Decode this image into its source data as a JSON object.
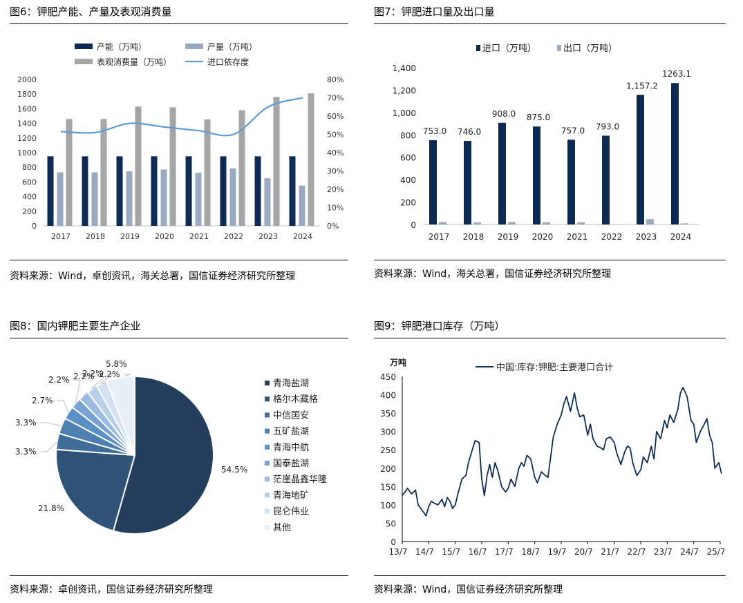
{
  "panels": {
    "p6": {
      "title": "图6：钾肥产能、产量及表观消费量",
      "source": "资料来源：Wind，卓创资讯，海关总署，国信证券经济研究所整理"
    },
    "p7": {
      "title": "图7：钾肥进口量及出口量",
      "source": "资料来源：Wind，海关总署，国信证券经济研究所整理"
    },
    "p8": {
      "title": "图8：国内钾肥主要生产企业",
      "source": "资料来源：卓创资讯，国信证券经济研究所整理"
    },
    "p9": {
      "title": "图9：钾肥港口库存（万吨）",
      "source": "资料来源：Wind，国信证券经济研究所整理"
    }
  },
  "colors": {
    "navy": "#0d2a54",
    "steel": "#9aabbf",
    "gray": "#a6a6a6",
    "line": "#5b9bd5"
  },
  "chart_data": [
    {
      "type": "bar",
      "categories": [
        "2017",
        "2018",
        "2019",
        "2020",
        "2021",
        "2022",
        "2023",
        "2024"
      ],
      "series": [
        {
          "name": "产能（万吨）",
          "values": [
            950,
            950,
            950,
            950,
            950,
            950,
            950,
            950
          ]
        },
        {
          "name": "产量（万吨）",
          "values": [
            730,
            730,
            745,
            770,
            725,
            785,
            650,
            550
          ]
        },
        {
          "name": "表观消费量（万吨）",
          "values": [
            1460,
            1460,
            1630,
            1620,
            1455,
            1580,
            1760,
            1810
          ]
        },
        {
          "name": "进口依存度",
          "axis": "right",
          "values": [
            51.5,
            51,
            56,
            54,
            52,
            50,
            65,
            70
          ]
        }
      ],
      "ylim": [
        0,
        2000
      ],
      "yticks": [
        "0",
        "200",
        "400",
        "600",
        "800",
        "1000",
        "1200",
        "1400",
        "1600",
        "1800",
        "2000"
      ],
      "y2lim": [
        0,
        80
      ],
      "y2ticks": [
        "0%",
        "10%",
        "20%",
        "30%",
        "40%",
        "50%",
        "60%",
        "70%",
        "80%"
      ]
    },
    {
      "type": "bar",
      "categories": [
        "2017",
        "2018",
        "2019",
        "2020",
        "2021",
        "2022",
        "2023",
        "2024"
      ],
      "series": [
        {
          "name": "进口（万吨）",
          "values": [
            753.0,
            746.0,
            908.0,
            875.0,
            757.0,
            793.0,
            1157.2,
            1263.1
          ],
          "labels": [
            "753.0",
            "746.0",
            "908.0",
            "875.0",
            "757.0",
            "793.0",
            "1,157.2",
            "1263.1"
          ]
        },
        {
          "name": "出口（万吨）",
          "values": [
            22,
            18,
            22,
            20,
            20,
            2,
            48,
            10
          ]
        }
      ],
      "ylim": [
        0,
        1400
      ],
      "yticks": [
        "0",
        "200",
        "400",
        "600",
        "800",
        "1,000",
        "1,200",
        "1,400"
      ]
    },
    {
      "type": "pie",
      "categories": [
        "青海盐湖",
        "格尔木藏格",
        "中信国安",
        "五矿盐湖",
        "青海中航",
        "国泰盐湖",
        "茫崖晶鑫华隆",
        "青海地矿",
        "昆仑伟业",
        "其他"
      ],
      "values": [
        54.5,
        21.8,
        3.3,
        3.3,
        2.7,
        2.2,
        2.2,
        2.2,
        2.2,
        5.8
      ],
      "labels": [
        "54.5%",
        "21.8%",
        "3.3%",
        "3.3%",
        "2.7%",
        "2.2%",
        "2.2%",
        "2.2%",
        "2.2%",
        "5.8%"
      ],
      "colors": [
        "#243f5e",
        "#2f5478",
        "#3f6d99",
        "#4d7fb0",
        "#5b8fc5",
        "#7aa3d3",
        "#9cbbe2",
        "#b9cfe9",
        "#d3e1f2",
        "#e8eff8"
      ]
    },
    {
      "type": "line",
      "ylabel": "万吨",
      "series": [
        {
          "name": "中国:库存:钾肥:主要港口合计"
        }
      ],
      "ylim": [
        0,
        450
      ],
      "yticks": [
        "0",
        "50",
        "100",
        "150",
        "200",
        "250",
        "300",
        "350",
        "400",
        "450"
      ],
      "xticks": [
        "13/7",
        "14/7",
        "15/7",
        "16/7",
        "17/7",
        "18/7",
        "19/7",
        "20/7",
        "21/7",
        "22/7",
        "23/7",
        "24/7",
        "25/7"
      ],
      "x": [
        13.5,
        13.7,
        13.85,
        14.0,
        14.1,
        14.25,
        14.4,
        14.5,
        14.6,
        14.7,
        14.85,
        15.0,
        15.1,
        15.2,
        15.3,
        15.4,
        15.5,
        15.6,
        15.75,
        15.9,
        16.0,
        16.1,
        16.25,
        16.4,
        16.5,
        16.6,
        16.7,
        16.8,
        16.9,
        17.0,
        17.1,
        17.25,
        17.4,
        17.5,
        17.6,
        17.75,
        17.9,
        18.0,
        18.1,
        18.2,
        18.35,
        18.5,
        18.6,
        18.75,
        18.9,
        19.0,
        19.1,
        19.2,
        19.35,
        19.5,
        19.6,
        19.7,
        19.85,
        20.0,
        20.1,
        20.2,
        20.35,
        20.5,
        20.6,
        20.7,
        20.85,
        21.0,
        21.1,
        21.2,
        21.35,
        21.5,
        21.6,
        21.75,
        21.9,
        22.0,
        22.1,
        22.2,
        22.35,
        22.5,
        22.6,
        22.75,
        22.9,
        23.0,
        23.1,
        23.25,
        23.4,
        23.5,
        23.6,
        23.75,
        23.9,
        24.0,
        24.1,
        24.25,
        24.4,
        24.5,
        24.6,
        24.75,
        24.9,
        25.0,
        25.1,
        25.2,
        25.3,
        25.45,
        25.55
      ],
      "y": [
        125,
        145,
        130,
        140,
        100,
        85,
        70,
        95,
        110,
        105,
        100,
        115,
        95,
        120,
        110,
        90,
        100,
        130,
        170,
        180,
        215,
        240,
        275,
        270,
        170,
        125,
        180,
        210,
        175,
        215,
        195,
        150,
        135,
        145,
        170,
        150,
        200,
        215,
        205,
        235,
        225,
        175,
        160,
        190,
        180,
        175,
        230,
        285,
        320,
        345,
        375,
        395,
        355,
        405,
        365,
        340,
        345,
        290,
        320,
        280,
        260,
        255,
        250,
        280,
        285,
        270,
        240,
        210,
        245,
        260,
        255,
        215,
        180,
        195,
        230,
        215,
        260,
        225,
        300,
        280,
        330,
        310,
        345,
        325,
        360,
        405,
        420,
        395,
        330,
        320,
        270,
        300,
        320,
        335,
        290,
        270,
        200,
        215,
        185
      ]
    }
  ]
}
